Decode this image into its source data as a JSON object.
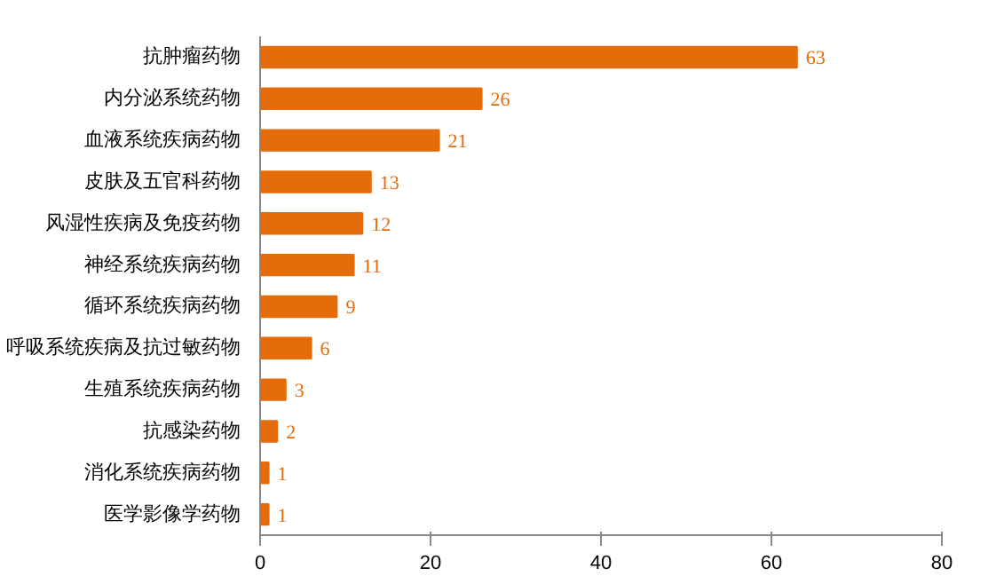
{
  "chart_data": {
    "type": "bar",
    "orientation": "horizontal",
    "categories": [
      "抗肿瘤药物",
      "内分泌系统药物",
      "血液系统疾病药物",
      "皮肤及五官科药物",
      "风湿性疾病及免疫药物",
      "神经系统疾病药物",
      "循环系统疾病药物",
      "呼吸系统疾病及抗过敏药物",
      "生殖系统疾病药物",
      "抗感染药物",
      "消化系统疾病药物",
      "医学影像学药物"
    ],
    "values": [
      63,
      26,
      21,
      13,
      12,
      11,
      9,
      6,
      3,
      2,
      1,
      1
    ],
    "color": "#e46c0a",
    "xlim": [
      0,
      80
    ],
    "xticks": [
      0,
      20,
      40,
      60,
      80
    ],
    "data_labels": true,
    "grid": false
  }
}
